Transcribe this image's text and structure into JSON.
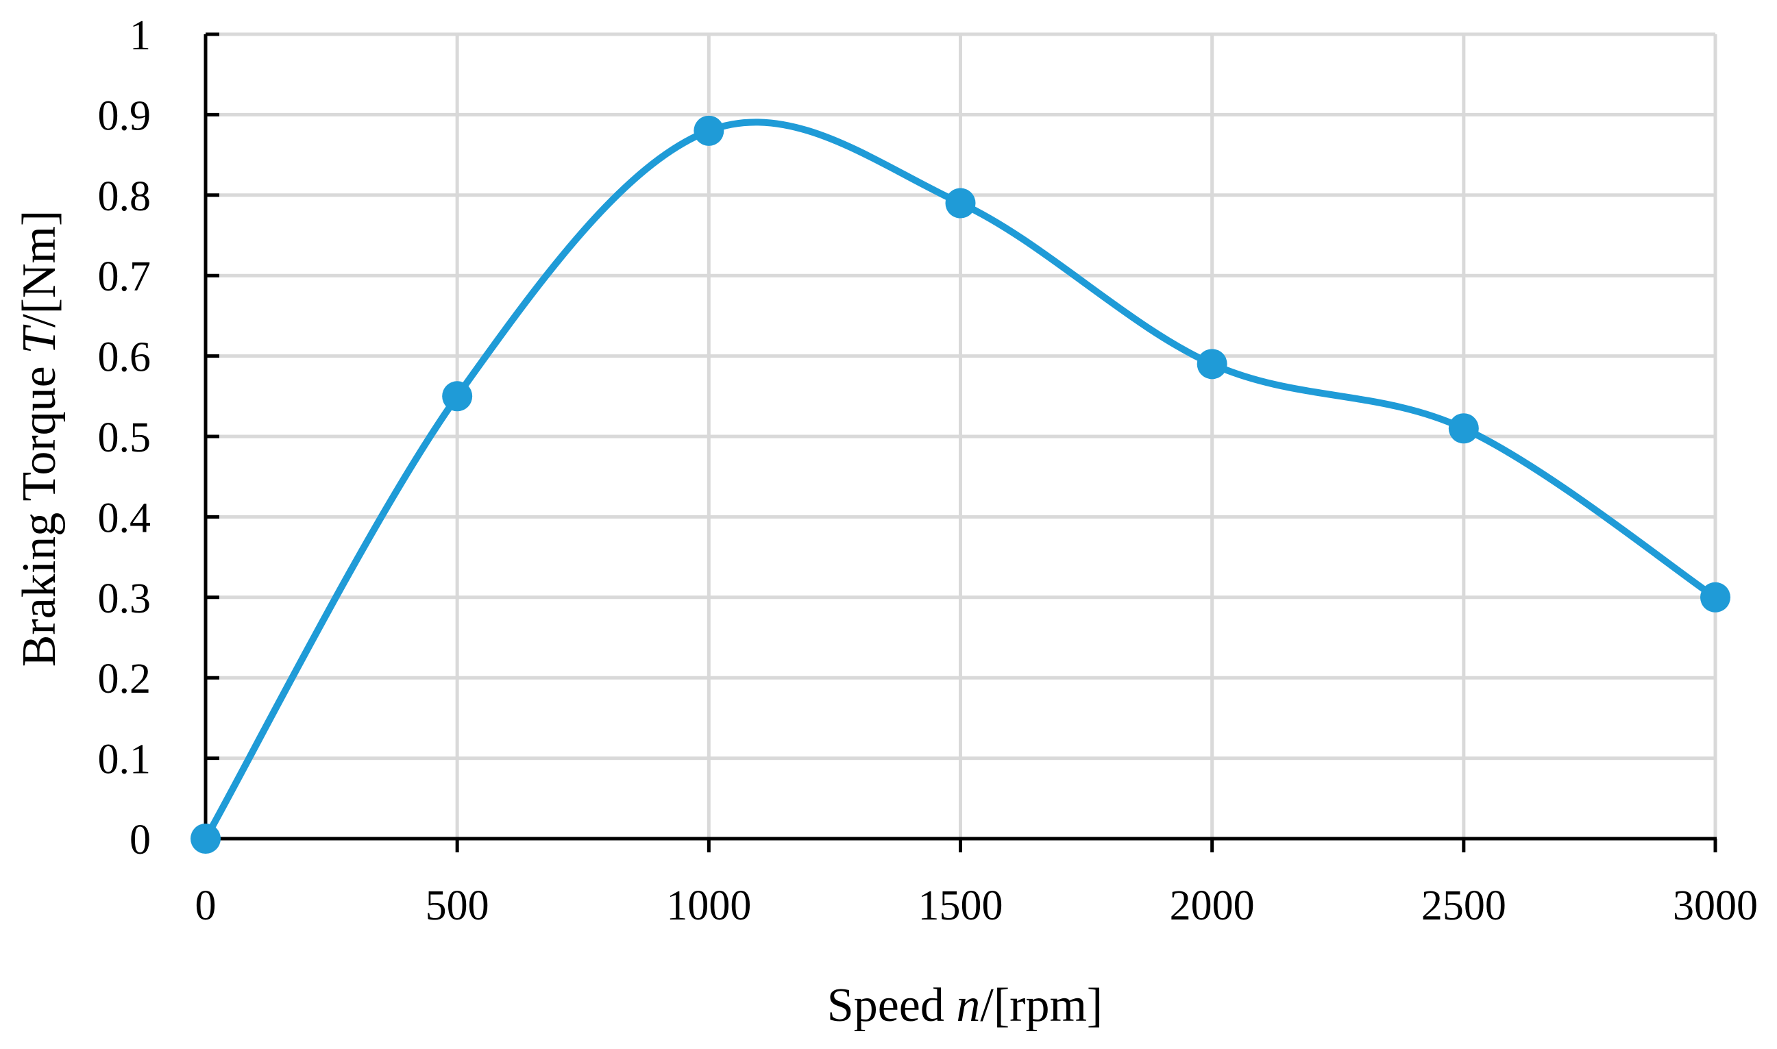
{
  "chart_data": {
    "type": "line",
    "smooth": true,
    "title": "",
    "xlabel": {
      "prefix": "Speed ",
      "var": "n",
      "suffix": "/[rpm]"
    },
    "ylabel": {
      "prefix": "Braking Torque ",
      "var": "T",
      "suffix": "/[Nm]"
    },
    "xlim": [
      0,
      3000
    ],
    "ylim": [
      0,
      1
    ],
    "x_ticks": [
      0,
      500,
      1000,
      1500,
      2000,
      2500,
      3000
    ],
    "y_ticks": [
      0,
      0.1,
      0.2,
      0.3,
      0.4,
      0.5,
      0.6,
      0.7,
      0.8,
      0.9,
      1
    ],
    "x_tick_labels": [
      "0",
      "500",
      "1000",
      "1500",
      "2000",
      "2500",
      "3000"
    ],
    "y_tick_labels": [
      "0",
      "0.1",
      "0.2",
      "0.3",
      "0.4",
      "0.5",
      "0.6",
      "0.7",
      "0.8",
      "0.9",
      "1"
    ],
    "grid": true,
    "series": [
      {
        "name": "Braking Torque",
        "color": "#1f9bd7",
        "x": [
          0,
          500,
          1000,
          1500,
          2000,
          2500,
          3000
        ],
        "y": [
          0,
          0.55,
          0.88,
          0.79,
          0.59,
          0.51,
          0.3
        ]
      }
    ]
  }
}
